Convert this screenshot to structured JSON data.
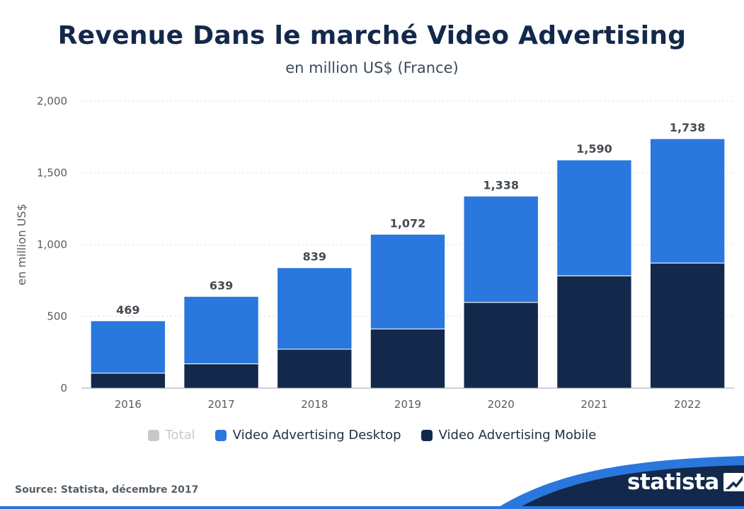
{
  "title": "Revenue Dans le marché Video Advertising",
  "subtitle": "en million US$ (France)",
  "source": "Source: Statista, décembre 2017",
  "brand": "statista",
  "colors": {
    "desktop": "#2a77dd",
    "mobile": "#13294b",
    "total": "#c6c9cc",
    "grid": "#d6dadf",
    "axis": "#9aa3ad"
  },
  "legend": [
    {
      "label": "Total",
      "color": "#c6c9cc",
      "active": false
    },
    {
      "label": "Video Advertising Desktop",
      "color": "#2a77dd",
      "active": true
    },
    {
      "label": "Video Advertising Mobile",
      "color": "#13294b",
      "active": true
    }
  ],
  "chart_data": {
    "type": "bar",
    "stacked": true,
    "title": "Revenue Dans le marché Video Advertising",
    "subtitle": "en million US$ (France)",
    "xlabel": "",
    "ylabel": "en million US$",
    "ylim": [
      0,
      2000
    ],
    "yticks": [
      0,
      500,
      1000,
      1500,
      2000
    ],
    "ytick_labels": [
      "0",
      "500",
      "1,000",
      "1,500",
      "2,000"
    ],
    "grid": true,
    "legend_position": "bottom",
    "categories": [
      "2016",
      "2017",
      "2018",
      "2019",
      "2020",
      "2021",
      "2022"
    ],
    "series": [
      {
        "name": "Video Advertising Mobile",
        "values": [
          104,
          169,
          271,
          412,
          597,
          782,
          871
        ]
      },
      {
        "name": "Video Advertising Desktop",
        "values": [
          365,
          470,
          568,
          660,
          741,
          808,
          867
        ]
      }
    ],
    "totals": [
      469,
      639,
      839,
      1072,
      1338,
      1590,
      1738
    ],
    "total_labels": [
      "469",
      "639",
      "839",
      "1,072",
      "1,338",
      "1,590",
      "1,738"
    ]
  }
}
